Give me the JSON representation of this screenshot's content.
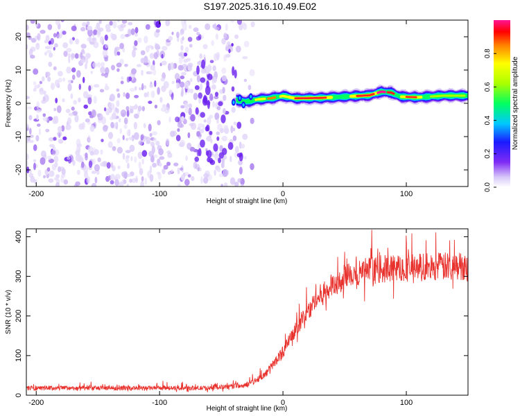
{
  "title": "S197.2025.316.10.49.E02",
  "chart_data": [
    {
      "type": "heatmap",
      "name": "spectrogram",
      "xlabel": "Height of straight line (km)",
      "ylabel": "Frequency (Hz)",
      "xlim": [
        -208,
        150
      ],
      "ylim": [
        -25,
        25
      ],
      "xticks": [
        -200,
        -100,
        0,
        100
      ],
      "xtick_labels": [
        "-200",
        "-100",
        "0",
        "100"
      ],
      "yticks": [
        -20,
        -10,
        0,
        10,
        20
      ],
      "ytick_labels": [
        "-20",
        "-10",
        "0",
        "10",
        "20"
      ],
      "colorbar": {
        "label": "Normalized spectral amplitude",
        "range": [
          0,
          1
        ],
        "ticks": [
          0.0,
          0.2,
          0.4,
          0.6,
          0.8
        ],
        "tick_labels": [
          "0.0",
          "0.2",
          "0.4",
          "0.6",
          "0.8"
        ]
      },
      "noise_region_x": [
        -208,
        -28
      ],
      "signal_track": [
        {
          "x": -38,
          "freq": 1.0
        },
        {
          "x": -30,
          "freq": 0.5
        },
        {
          "x": -20,
          "freq": 1.2
        },
        {
          "x": -10,
          "freq": 1.5
        },
        {
          "x": 0,
          "freq": 2.2
        },
        {
          "x": 10,
          "freq": 1.5
        },
        {
          "x": 30,
          "freq": 1.6
        },
        {
          "x": 50,
          "freq": 2.0
        },
        {
          "x": 70,
          "freq": 2.4
        },
        {
          "x": 80,
          "freq": 3.5
        },
        {
          "x": 88,
          "freq": 3.2
        },
        {
          "x": 95,
          "freq": 2.0
        },
        {
          "x": 110,
          "freq": 1.8
        },
        {
          "x": 130,
          "freq": 2.3
        },
        {
          "x": 150,
          "freq": 2.3
        }
      ]
    },
    {
      "type": "line",
      "name": "snr",
      "xlabel": "Height of straight line (km)",
      "ylabel": "SNR (10 * v/v)",
      "xlim": [
        -208,
        150
      ],
      "ylim": [
        0,
        420
      ],
      "xticks": [
        -200,
        -100,
        0,
        100
      ],
      "xtick_labels": [
        "-200",
        "-100",
        "0",
        "100"
      ],
      "yticks": [
        0,
        100,
        200,
        300,
        400
      ],
      "ytick_labels": [
        "0",
        "100",
        "200",
        "300",
        "400"
      ],
      "series": [
        {
          "name": "SNR",
          "color": "#e8312c",
          "trend_x": [
            -208,
            -60,
            -30,
            -15,
            0,
            15,
            30,
            45,
            60,
            80,
            100,
            150
          ],
          "trend_y": [
            18,
            18,
            25,
            50,
            110,
            190,
            250,
            290,
            310,
            318,
            322,
            326
          ]
        }
      ]
    }
  ]
}
